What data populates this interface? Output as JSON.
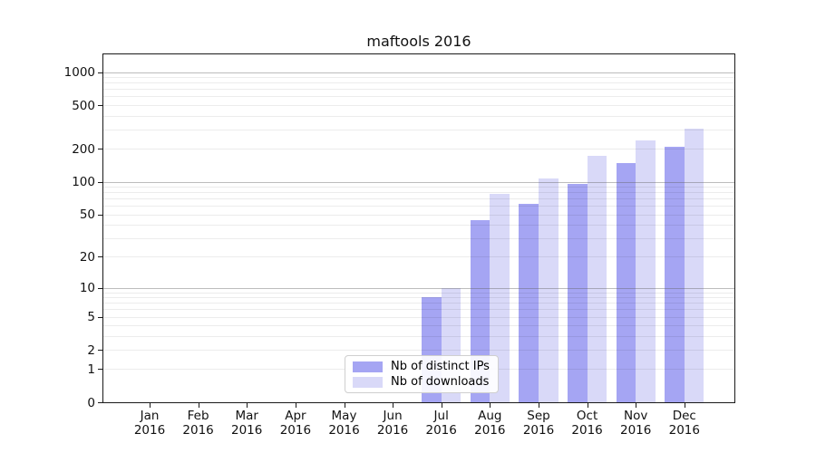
{
  "chart_data": {
    "type": "bar",
    "title": "maftools 2016",
    "categories": [
      "Jan",
      "Feb",
      "Mar",
      "Apr",
      "May",
      "Jun",
      "Jul",
      "Aug",
      "Sep",
      "Oct",
      "Nov",
      "Dec"
    ],
    "x_year": "2016",
    "series": [
      {
        "name": "Nb of distinct IPs",
        "color": "#a5a5f3",
        "values": [
          0,
          0,
          0,
          0,
          0,
          0,
          8,
          44,
          63,
          95,
          148,
          210
        ]
      },
      {
        "name": "Nb of downloads",
        "color": "#d9d9f8",
        "values": [
          0,
          0,
          0,
          0,
          0,
          0,
          10,
          78,
          108,
          172,
          240,
          305
        ]
      }
    ],
    "y_scale": "log10(value+1)",
    "y_ticks": [
      0,
      1,
      2,
      5,
      10,
      20,
      50,
      100,
      200,
      500,
      1000
    ],
    "y_gridlines_major": [
      10,
      100,
      1000
    ],
    "ylim": [
      0,
      1500
    ],
    "grid": true,
    "legend_position": "bottom-center"
  }
}
